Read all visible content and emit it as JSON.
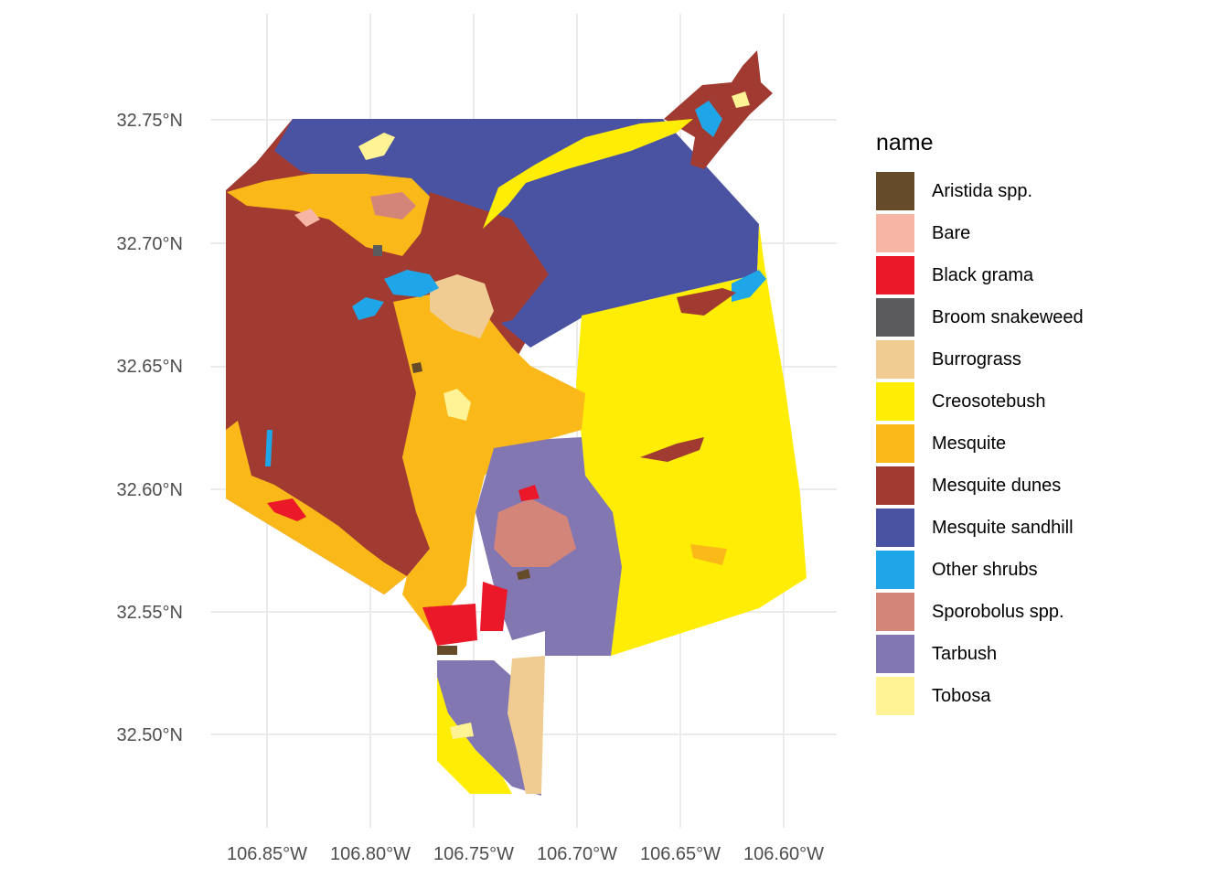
{
  "legend": {
    "title": "name",
    "items": [
      {
        "label": "Aristida spp.",
        "color": "#654B29"
      },
      {
        "label": "Bare",
        "color": "#F7B5A6"
      },
      {
        "label": "Black grama",
        "color": "#EA1828"
      },
      {
        "label": "Broom snakeweed",
        "color": "#5B5A5C"
      },
      {
        "label": "Burrograss",
        "color": "#F0CC92"
      },
      {
        "label": "Creosotebush",
        "color": "#FFED05"
      },
      {
        "label": "Mesquite",
        "color": "#FAB919"
      },
      {
        "label": "Mesquite dunes",
        "color": "#A13A30"
      },
      {
        "label": "Mesquite sandhill",
        "color": "#4A53A2"
      },
      {
        "label": "Other shrubs",
        "color": "#1FA6E8"
      },
      {
        "label": "Sporobolus spp.",
        "color": "#D4857A"
      },
      {
        "label": "Tarbush",
        "color": "#8377B1"
      },
      {
        "label": "Tobosa",
        "color": "#FFF396"
      }
    ]
  },
  "axes": {
    "x_ticks": [
      "106.85°W",
      "106.80°W",
      "106.75°W",
      "106.70°W",
      "106.65°W",
      "106.60°W"
    ],
    "y_ticks": [
      "32.75°N",
      "32.70°N",
      "32.65°N",
      "32.60°N",
      "32.55°N",
      "32.50°N"
    ]
  }
}
